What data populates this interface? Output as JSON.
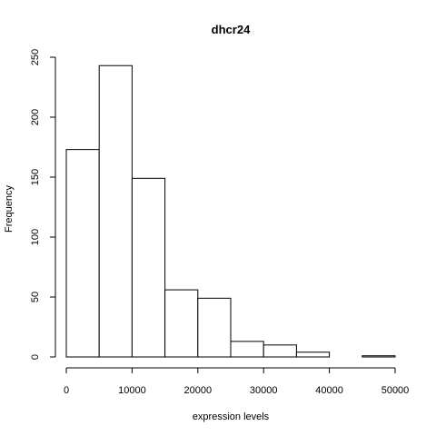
{
  "chart_data": {
    "type": "bar",
    "title": "dhcr24",
    "xlabel": "expression levels",
    "ylabel": "Frequency",
    "bins": [
      {
        "start": 0,
        "end": 5000,
        "count": 173
      },
      {
        "start": 5000,
        "end": 10000,
        "count": 243
      },
      {
        "start": 10000,
        "end": 15000,
        "count": 149
      },
      {
        "start": 15000,
        "end": 20000,
        "count": 56
      },
      {
        "start": 20000,
        "end": 25000,
        "count": 49
      },
      {
        "start": 25000,
        "end": 30000,
        "count": 13
      },
      {
        "start": 30000,
        "end": 35000,
        "count": 10
      },
      {
        "start": 35000,
        "end": 40000,
        "count": 4
      },
      {
        "start": 40000,
        "end": 45000,
        "count": 0
      },
      {
        "start": 45000,
        "end": 50000,
        "count": 1
      }
    ],
    "xlim": [
      0,
      50000
    ],
    "ylim": [
      0,
      250
    ],
    "xticks": [
      0,
      10000,
      20000,
      30000,
      40000,
      50000
    ],
    "yticks": [
      0,
      50,
      100,
      150,
      200,
      250
    ],
    "xtick_labels": [
      "0",
      "10000",
      "20000",
      "30000",
      "40000",
      "50000"
    ],
    "ytick_labels": [
      "0",
      "50",
      "100",
      "150",
      "200",
      "250"
    ],
    "grid": false,
    "legend": "none"
  }
}
